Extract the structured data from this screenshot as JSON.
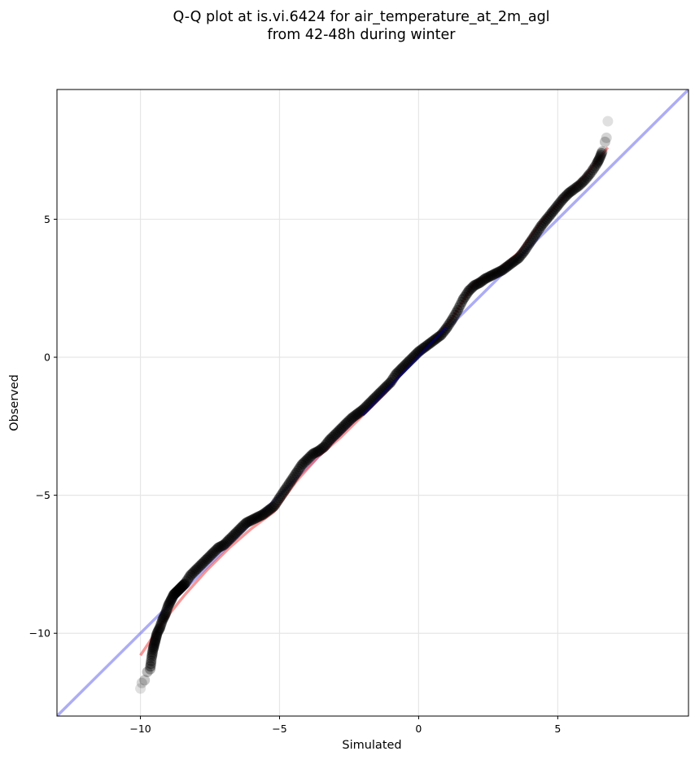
{
  "chart_data": {
    "type": "scatter",
    "title": [
      "Q-Q plot at is.vi.6424 for air_temperature_at_2m_agl",
      "from 42-48h during winter"
    ],
    "xlabel": "Simulated",
    "ylabel": "Observed",
    "xlim": [
      -13.0,
      9.7
    ],
    "ylim": [
      -13.0,
      9.7
    ],
    "xticks": [
      -10,
      -5,
      0,
      5
    ],
    "yticks": [
      -10,
      -5,
      0,
      5
    ],
    "grid": true,
    "legend": "none",
    "colors": {
      "points": "#000000",
      "identity_line": "#7777ee",
      "fit_line": "#ee4444",
      "middle_line": "#000080",
      "grid": "#e6e6e6"
    },
    "identity_line": {
      "x": [
        -13.0,
        9.7
      ],
      "y": [
        -13.0,
        9.7
      ]
    },
    "fit_line": {
      "x": [
        -10.0,
        -9.2,
        -8.4,
        -7.6,
        -6.8,
        -6.0,
        -5.2,
        -4.4,
        -3.6,
        -2.8,
        -2.0,
        -1.2,
        -0.4,
        0.4,
        1.2,
        2.0,
        2.8,
        3.6,
        4.4,
        5.2,
        6.0,
        6.8
      ],
      "y": [
        -10.8,
        -9.6,
        -8.6,
        -7.7,
        -6.9,
        -6.2,
        -5.6,
        -4.5,
        -3.6,
        -2.9,
        -2.1,
        -1.3,
        -0.3,
        0.5,
        1.4,
        2.7,
        3.1,
        3.8,
        4.9,
        5.8,
        6.6,
        7.6
      ]
    },
    "points": {
      "x": [
        -10.0,
        -9.95,
        -9.85,
        -9.75,
        -9.65,
        -9.6,
        -9.55,
        -9.5,
        -9.45,
        -9.4,
        -9.3,
        -9.2,
        -9.1,
        -9.0,
        -8.9,
        -8.8,
        -8.7,
        -8.6,
        -8.5,
        -8.4,
        -8.2,
        -8.0,
        -7.8,
        -7.6,
        -7.4,
        -7.2,
        -7.0,
        -6.8,
        -6.6,
        -6.4,
        -6.2,
        -6.0,
        -5.8,
        -5.6,
        -5.4,
        -5.2,
        -5.0,
        -4.8,
        -4.6,
        -4.4,
        -4.2,
        -4.0,
        -3.8,
        -3.6,
        -3.4,
        -3.2,
        -3.0,
        -2.8,
        -2.6,
        -2.4,
        -2.2,
        -2.0,
        -1.8,
        -1.6,
        -1.4,
        -1.2,
        -1.0,
        -0.8,
        -0.6,
        -0.4,
        -0.2,
        0.0,
        0.2,
        0.4,
        0.6,
        0.8,
        1.0,
        1.2,
        1.4,
        1.6,
        1.8,
        2.0,
        2.2,
        2.4,
        2.6,
        2.8,
        3.0,
        3.2,
        3.4,
        3.6,
        3.8,
        4.0,
        4.2,
        4.4,
        4.6,
        4.8,
        5.0,
        5.2,
        5.4,
        5.6,
        5.8,
        6.0,
        6.2,
        6.4,
        6.5,
        6.6,
        6.7,
        6.75,
        6.8
      ],
      "y": [
        -12.0,
        -11.8,
        -11.7,
        -11.4,
        -11.3,
        -10.9,
        -10.6,
        -10.4,
        -10.2,
        -10.0,
        -9.8,
        -9.5,
        -9.3,
        -9.0,
        -8.8,
        -8.6,
        -8.5,
        -8.4,
        -8.3,
        -8.2,
        -7.9,
        -7.7,
        -7.5,
        -7.3,
        -7.1,
        -6.9,
        -6.8,
        -6.6,
        -6.4,
        -6.2,
        -6.0,
        -5.9,
        -5.8,
        -5.7,
        -5.55,
        -5.4,
        -5.1,
        -4.8,
        -4.5,
        -4.2,
        -3.9,
        -3.7,
        -3.5,
        -3.4,
        -3.25,
        -3.0,
        -2.8,
        -2.6,
        -2.4,
        -2.2,
        -2.05,
        -1.9,
        -1.7,
        -1.5,
        -1.3,
        -1.1,
        -0.9,
        -0.6,
        -0.4,
        -0.2,
        0.0,
        0.2,
        0.35,
        0.5,
        0.65,
        0.8,
        1.05,
        1.35,
        1.7,
        2.1,
        2.4,
        2.6,
        2.7,
        2.85,
        2.95,
        3.05,
        3.15,
        3.3,
        3.45,
        3.6,
        3.85,
        4.15,
        4.45,
        4.75,
        5.0,
        5.25,
        5.5,
        5.75,
        5.95,
        6.1,
        6.25,
        6.45,
        6.7,
        7.0,
        7.2,
        7.45,
        7.8,
        7.95,
        8.55
      ]
    }
  }
}
